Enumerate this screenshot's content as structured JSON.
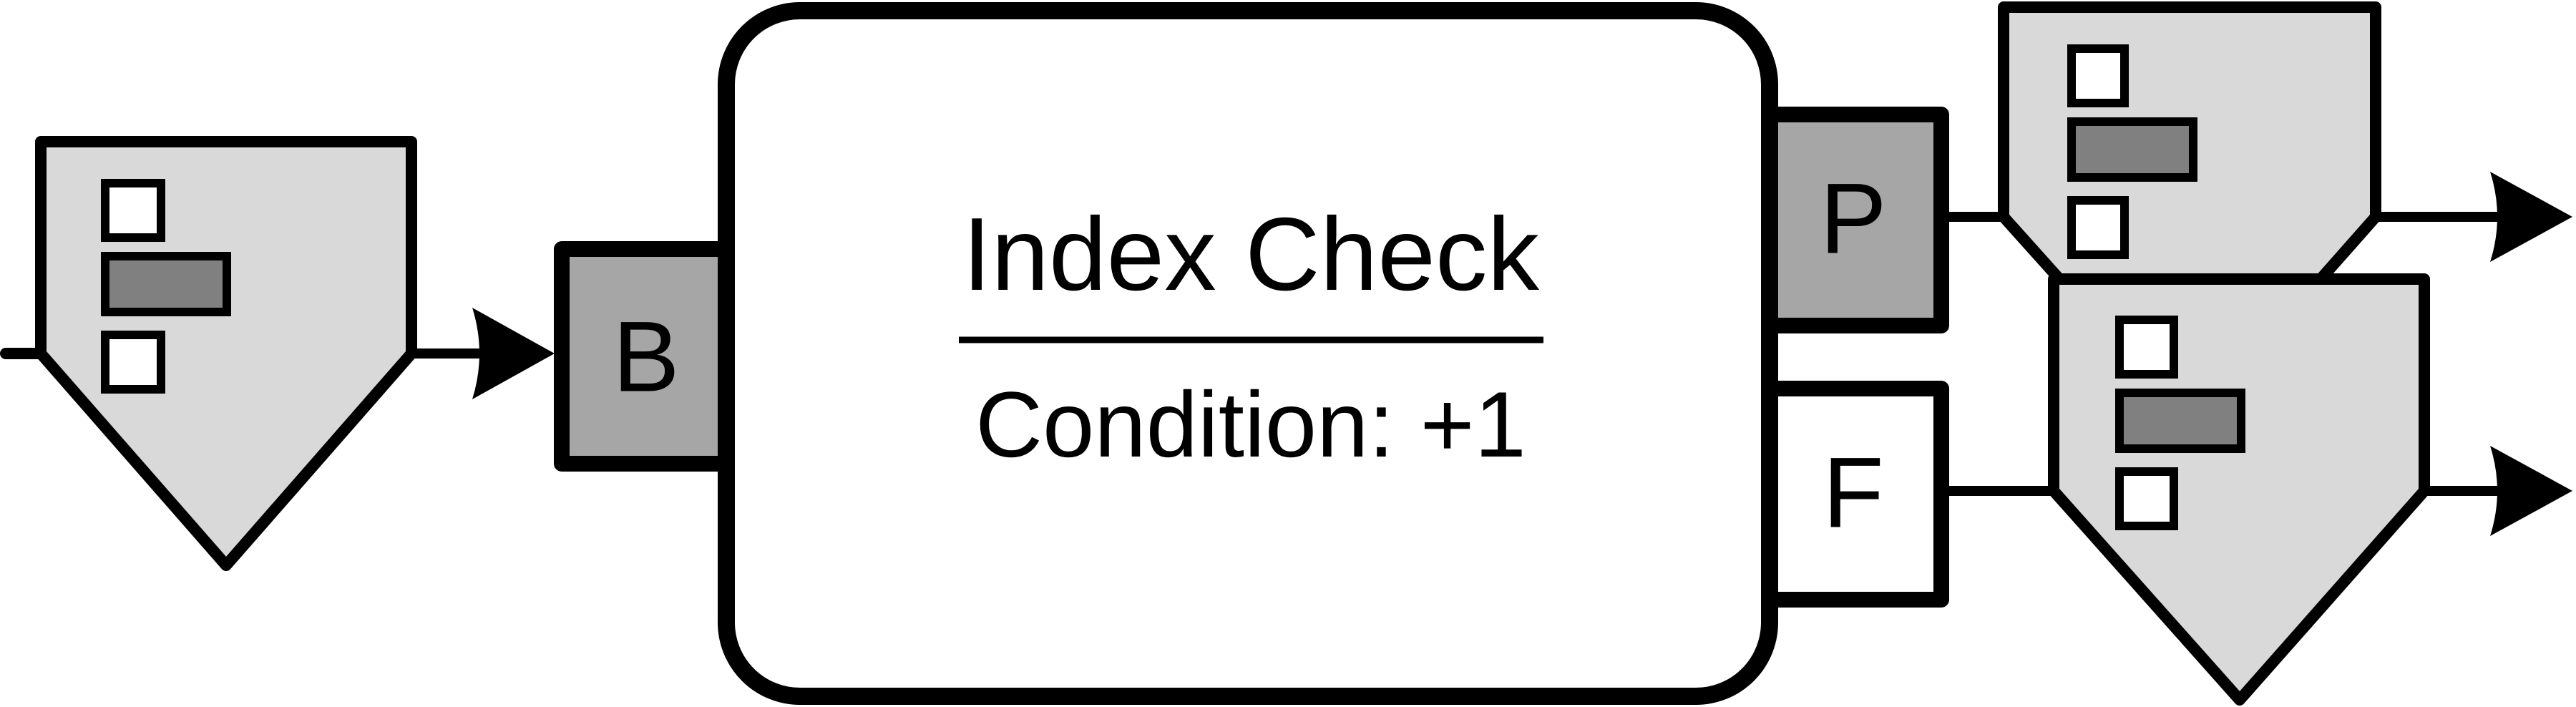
{
  "title": "Index Check",
  "condition": "Condition: +1",
  "ports": {
    "input": "B",
    "pass": "P",
    "fail": "F"
  },
  "colors": {
    "stroke": "#000000",
    "node_fill": "#d9d9d9",
    "bar_fill": "#808080",
    "port_fill_dark": "#a6a6a6",
    "port_fill_light": "#ffffff",
    "background": "#ffffff"
  }
}
